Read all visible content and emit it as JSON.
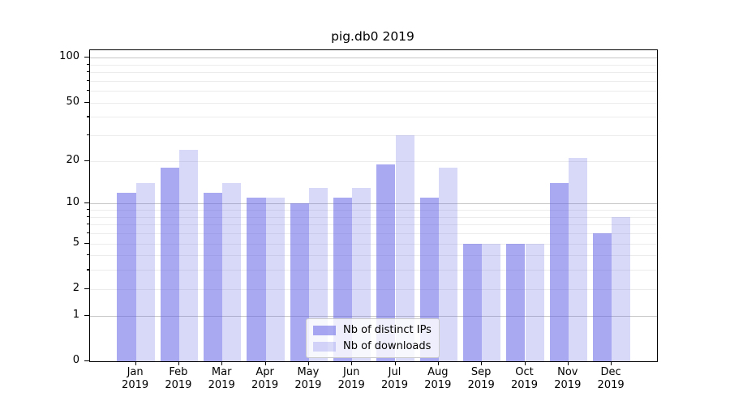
{
  "figure": {
    "background": "#ffffff"
  },
  "chart_data": {
    "type": "bar",
    "title": "pig.db0 2019",
    "x_categories": [
      {
        "month": "Jan",
        "year": "2019"
      },
      {
        "month": "Feb",
        "year": "2019"
      },
      {
        "month": "Mar",
        "year": "2019"
      },
      {
        "month": "Apr",
        "year": "2019"
      },
      {
        "month": "May",
        "year": "2019"
      },
      {
        "month": "Jun",
        "year": "2019"
      },
      {
        "month": "Jul",
        "year": "2019"
      },
      {
        "month": "Aug",
        "year": "2019"
      },
      {
        "month": "Sep",
        "year": "2019"
      },
      {
        "month": "Oct",
        "year": "2019"
      },
      {
        "month": "Nov",
        "year": "2019"
      },
      {
        "month": "Dec",
        "year": "2019"
      }
    ],
    "series": [
      {
        "name": "Nb of distinct IPs",
        "color": "rgba(99,99,230,0.55)",
        "values": [
          12,
          18,
          12,
          11,
          10,
          11,
          19,
          11,
          5,
          5,
          14,
          6
        ]
      },
      {
        "name": "Nb of downloads",
        "color": "rgba(99,99,230,0.25)",
        "values": [
          14,
          24,
          14,
          11,
          13,
          13,
          30,
          18,
          5,
          5,
          21,
          8
        ]
      }
    ],
    "y_axis": {
      "scale": "log10(1+x)",
      "ticks": [
        0,
        1,
        2,
        5,
        10,
        20,
        50,
        100
      ],
      "major_gridlines": [
        1,
        10,
        100
      ],
      "minor_gridlines": [
        2,
        3,
        4,
        5,
        6,
        7,
        8,
        9,
        20,
        30,
        40,
        50,
        60,
        70,
        80,
        90
      ],
      "range": [
        0,
        112
      ]
    },
    "grid": true,
    "legend_position": "lower center"
  }
}
